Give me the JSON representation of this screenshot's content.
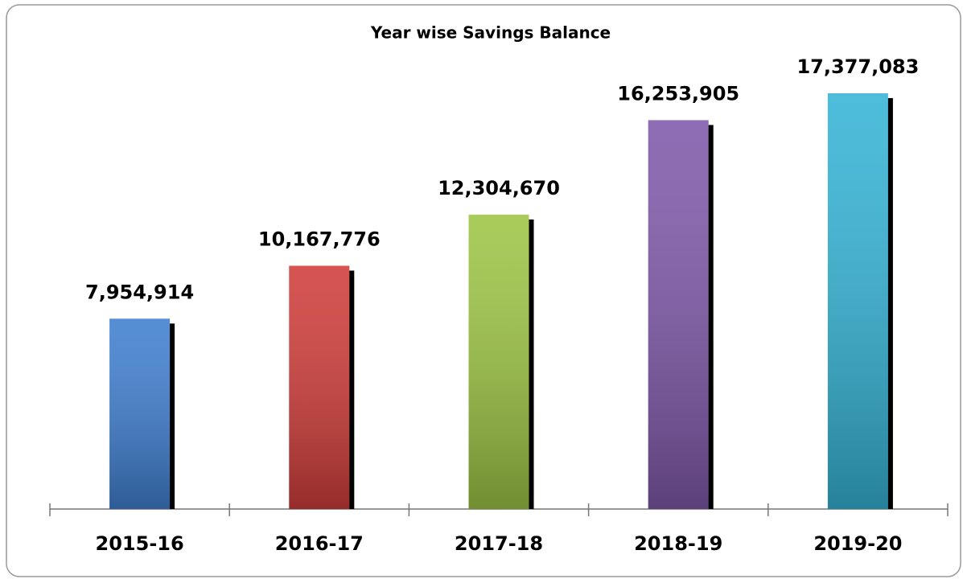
{
  "chart_data": {
    "type": "bar",
    "title": "Year wise Savings Balance",
    "categories": [
      "2015-16",
      "2016-17",
      "2017-18",
      "2018-19",
      "2019-20"
    ],
    "values": [
      7954914,
      10167776,
      12304670,
      16253905,
      17377083
    ],
    "value_labels": [
      "7,954,914",
      "10,167,776",
      "12,304,670",
      "16,253,905",
      "17,377,083"
    ],
    "colors": [
      "#3f7fd0",
      "#d03d3a",
      "#9dc544",
      "#8059aa",
      "#35b4d6"
    ]
  }
}
